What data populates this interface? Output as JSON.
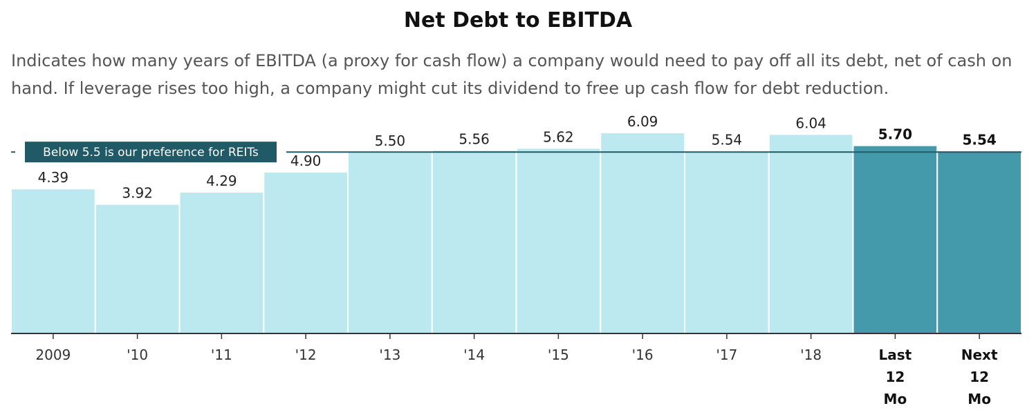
{
  "title": "Net Debt to EBITDA",
  "subtitle": "Indicates how many years of EBITDA (a proxy for cash flow) a company would need to pay off all its debt, net of cash on hand. If leverage rises too high, a company might cut its dividend to free up cash flow for debt reduction.",
  "chart_data": {
    "type": "bar",
    "categories": [
      "2009",
      "'10",
      "'11",
      "'12",
      "'13",
      "'14",
      "'15",
      "'16",
      "'17",
      "'18",
      "Last 12 Mo",
      "Next 12 Mo"
    ],
    "values": [
      4.39,
      3.92,
      4.29,
      4.9,
      5.5,
      5.56,
      5.62,
      6.09,
      5.54,
      6.04,
      5.7,
      5.54
    ],
    "value_labels": [
      "4.39",
      "3.92",
      "4.29",
      "4.90",
      "5.50",
      "5.56",
      "5.62",
      "6.09",
      "5.54",
      "6.04",
      "5.70",
      "5.54"
    ],
    "highlighted": [
      false,
      false,
      false,
      false,
      false,
      false,
      false,
      false,
      false,
      false,
      true,
      true
    ],
    "ylim": [
      0,
      6.09
    ],
    "reference_line": {
      "value": 5.5,
      "label": "Below 5.5 is our preference for REITs"
    },
    "colors": {
      "bar": "#bce8ef",
      "bar_highlight": "#4499aa",
      "reference": "#1f5a66",
      "axis": "#333333"
    }
  }
}
